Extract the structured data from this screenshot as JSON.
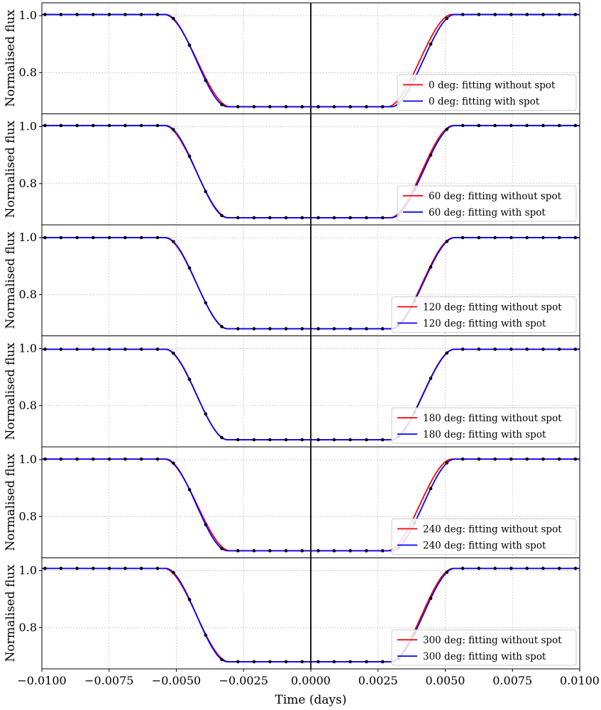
{
  "chart_data": {
    "type": "line",
    "figure_xlabel": "Time (days)",
    "ylabel": "Normalised flux",
    "xlim": [
      -0.01,
      0.01
    ],
    "ylim": [
      0.655,
      1.045
    ],
    "xticks": [
      -0.01,
      -0.0075,
      -0.005,
      -0.0025,
      0.0,
      0.0025,
      0.005,
      0.0075,
      0.01
    ],
    "xtick_labels": [
      "−0.0100",
      "−0.0075",
      "−0.0050",
      "−0.0025",
      "0.0000",
      "0.0025",
      "0.0050",
      "0.0075",
      "0.0100"
    ],
    "yticks": [
      0.8,
      1.0
    ],
    "ytick_labels": [
      "0.8",
      "1.0"
    ],
    "grid": true,
    "vertical_line_x": 0.0,
    "legend_location": "lower right",
    "colors": {
      "without_spot": "#ff0000",
      "with_spot": "#0000ff",
      "observed": "#000000"
    },
    "observed_times": [
      -0.00988,
      -0.00929,
      -0.00869,
      -0.00809,
      -0.00749,
      -0.0069,
      -0.0063,
      -0.0057,
      -0.00511,
      -0.00451,
      -0.00391,
      -0.00331,
      -0.00271,
      -0.00211,
      -0.00152,
      -0.00092,
      -0.00032,
      0.00028,
      0.00087,
      0.00147,
      0.00207,
      0.00267,
      0.00326,
      0.00386,
      0.00446,
      0.00506,
      0.00565,
      0.00625,
      0.00685,
      0.00745,
      0.00804,
      0.00864,
      0.00924,
      0.00984
    ],
    "panels": [
      {
        "angle_label": "0 deg",
        "baseline": 1.004,
        "depth": 0.68,
        "series": [
          {
            "name": "0 deg: fitting without spot",
            "color": "#ff0000",
            "ingress_start": -0.00545,
            "ingress_end": -0.003,
            "egress_start": 0.00285,
            "egress_end": 0.00525
          },
          {
            "name": "0 deg: fitting with spot",
            "color": "#0000ff",
            "ingress_start": -0.0054,
            "ingress_end": -0.0031,
            "egress_start": 0.003,
            "egress_end": 0.00535
          }
        ]
      },
      {
        "angle_label": "60 deg",
        "baseline": 1.004,
        "depth": 0.68,
        "series": [
          {
            "name": "60 deg: fitting without spot",
            "color": "#ff0000",
            "ingress_start": -0.00545,
            "ingress_end": -0.00306,
            "egress_start": 0.00295,
            "egress_end": 0.0053
          },
          {
            "name": "60 deg: fitting with spot",
            "color": "#0000ff",
            "ingress_start": -0.0054,
            "ingress_end": -0.0031,
            "egress_start": 0.003,
            "egress_end": 0.00535
          }
        ]
      },
      {
        "angle_label": "120 deg",
        "baseline": 1.0,
        "depth": 0.68,
        "series": [
          {
            "name": "120 deg: fitting without spot",
            "color": "#ff0000",
            "ingress_start": -0.00543,
            "ingress_end": -0.00308,
            "egress_start": 0.00297,
            "egress_end": 0.00532
          },
          {
            "name": "120 deg: fitting with spot",
            "color": "#0000ff",
            "ingress_start": -0.0054,
            "ingress_end": -0.0031,
            "egress_start": 0.003,
            "egress_end": 0.00535
          }
        ]
      },
      {
        "angle_label": "180 deg",
        "baseline": 0.998,
        "depth": 0.68,
        "series": [
          {
            "name": "180 deg: fitting without spot",
            "color": "#ff0000",
            "ingress_start": -0.00542,
            "ingress_end": -0.00309,
            "egress_start": 0.00299,
            "egress_end": 0.00534
          },
          {
            "name": "180 deg: fitting with spot",
            "color": "#0000ff",
            "ingress_start": -0.0054,
            "ingress_end": -0.0031,
            "egress_start": 0.003,
            "egress_end": 0.00535
          }
        ]
      },
      {
        "angle_label": "240 deg",
        "baseline": 1.002,
        "depth": 0.68,
        "series": [
          {
            "name": "240 deg: fitting without spot",
            "color": "#ff0000",
            "ingress_start": -0.00545,
            "ingress_end": -0.003,
            "egress_start": 0.00285,
            "egress_end": 0.00525
          },
          {
            "name": "240 deg: fitting with spot",
            "color": "#0000ff",
            "ingress_start": -0.0054,
            "ingress_end": -0.0031,
            "egress_start": 0.003,
            "egress_end": 0.00535
          }
        ]
      },
      {
        "angle_label": "300 deg",
        "baseline": 1.008,
        "depth": 0.68,
        "series": [
          {
            "name": "300 deg: fitting without spot",
            "color": "#ff0000",
            "ingress_start": -0.00546,
            "ingress_end": -0.00304,
            "egress_start": 0.00295,
            "egress_end": 0.0053
          },
          {
            "name": "300 deg: fitting with spot",
            "color": "#0000ff",
            "ingress_start": -0.0054,
            "ingress_end": -0.0031,
            "egress_start": 0.003,
            "egress_end": 0.00535
          }
        ]
      }
    ]
  }
}
